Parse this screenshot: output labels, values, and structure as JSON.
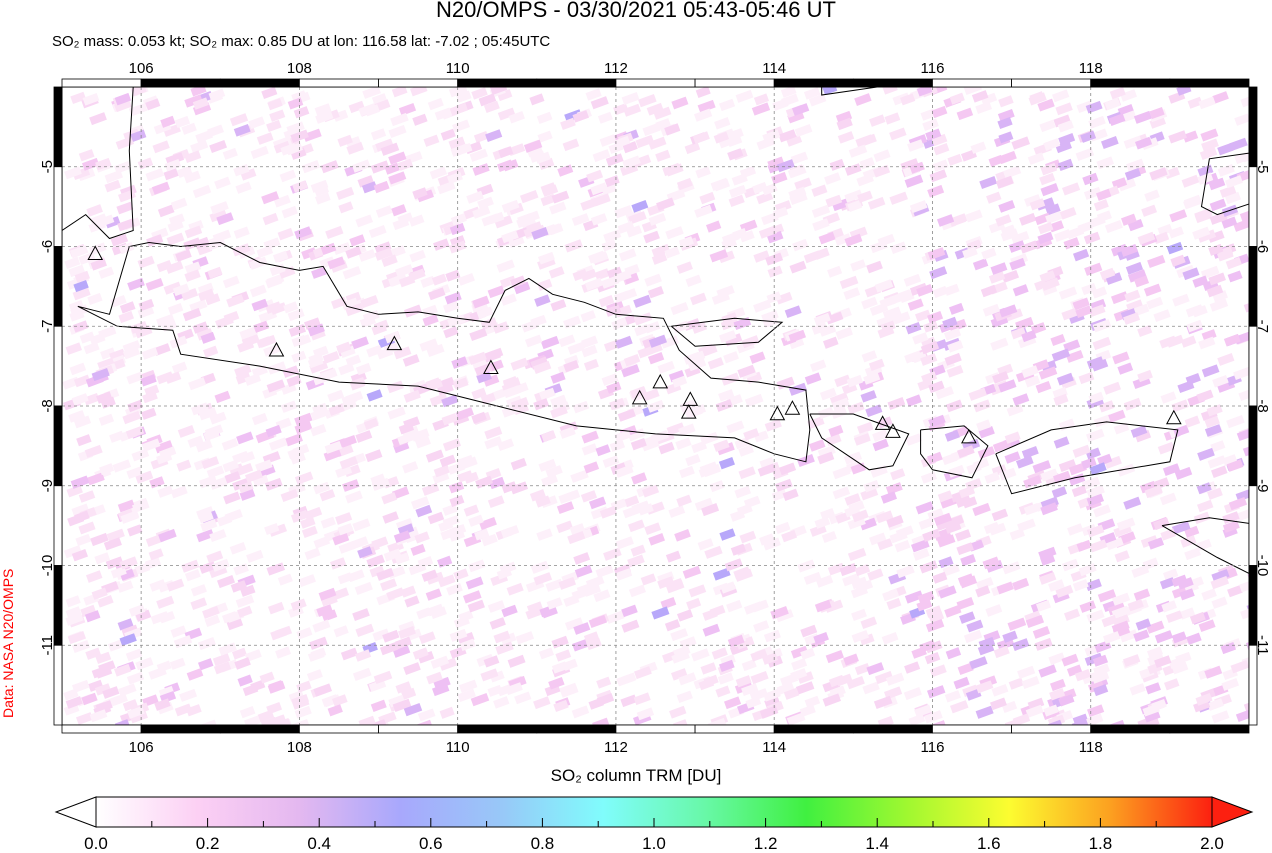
{
  "header": {
    "title": "N20/OMPS - 03/30/2021 05:43-05:46 UT",
    "subtitle": "SO₂ mass: 0.053 kt; SO₂ max: 0.85 DU at lon: 116.58 lat: -7.02 ; 05:45UTC"
  },
  "credit": "Data: NASA N20/OMPS",
  "map": {
    "lon_range": [
      105,
      120
    ],
    "lat_range": [
      -12,
      -4
    ],
    "lon_ticks": [
      "106",
      "108",
      "110",
      "112",
      "114",
      "116",
      "118"
    ],
    "lat_ticks": [
      "-5",
      "-6",
      "-7",
      "-8",
      "-9",
      "-10",
      "-11"
    ],
    "grid": true,
    "volcanoes": [
      [
        105.42,
        -6.1
      ],
      [
        107.71,
        -7.31
      ],
      [
        109.2,
        -7.23
      ],
      [
        110.42,
        -7.53
      ],
      [
        112.3,
        -7.91
      ],
      [
        112.56,
        -7.71
      ],
      [
        112.94,
        -7.93
      ],
      [
        112.92,
        -8.09
      ],
      [
        114.04,
        -8.11
      ],
      [
        114.23,
        -8.04
      ],
      [
        115.37,
        -8.23
      ],
      [
        115.5,
        -8.33
      ],
      [
        116.46,
        -8.4
      ],
      [
        119.05,
        -8.16
      ]
    ]
  },
  "colorbar": {
    "title": "SO₂ column TRM [DU]",
    "ticks": [
      "0.0",
      "0.2",
      "0.4",
      "0.6",
      "0.8",
      "1.0",
      "1.2",
      "1.4",
      "1.6",
      "1.8",
      "2.0"
    ],
    "range": [
      0,
      2
    ],
    "stops": [
      "#ffffff",
      "#fcd0f4",
      "#e4b8f0",
      "#a8a8fc",
      "#98c8f8",
      "#80fcfc",
      "#68f8a8",
      "#40f040",
      "#a0f830",
      "#fcfc30",
      "#fca020",
      "#fc2010"
    ]
  }
}
